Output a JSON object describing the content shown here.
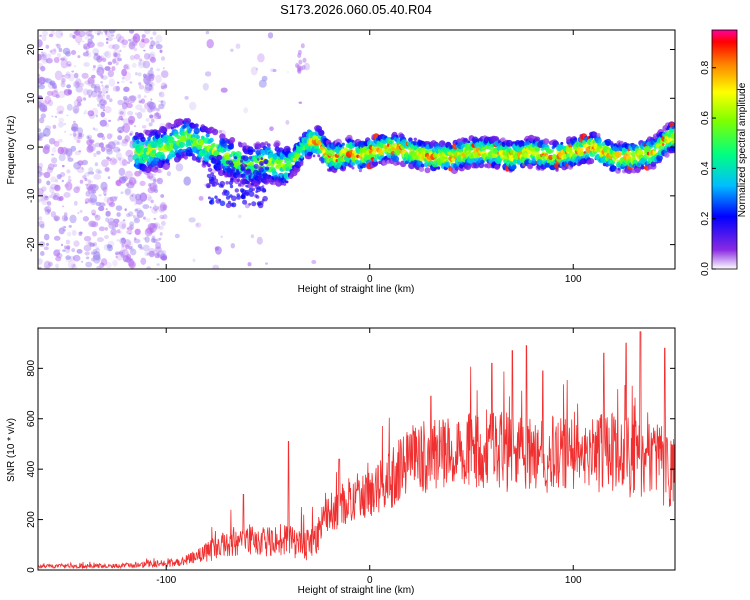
{
  "title": "S173.2026.060.05.40.R04",
  "chart_data": [
    {
      "type": "heatmap",
      "xlabel": "Height of straight line (km)",
      "ylabel": "Frequency (Hz)",
      "xlim": [
        -163,
        150
      ],
      "ylim": [
        -25,
        24
      ],
      "xticks": [
        -100,
        0,
        100
      ],
      "yticks": [
        -20,
        -10,
        0,
        10,
        20
      ],
      "colorbar": {
        "label": "Normalized spectral amplitude",
        "range": [
          0,
          0.95
        ],
        "ticks": [
          0.0,
          0.2,
          0.4,
          0.6,
          0.8
        ],
        "tick_labels": [
          "0.0",
          "0.2",
          "0.4",
          "0.6",
          "0.8"
        ]
      },
      "ridge": {
        "x": [
          -110,
          -100,
          -90,
          -80,
          -70,
          -60,
          -50,
          -40,
          -30,
          -25,
          -20,
          -15,
          -10,
          -5,
          0,
          10,
          20,
          30,
          40,
          50,
          60,
          70,
          80,
          90,
          100,
          110,
          120,
          130,
          140,
          148
        ],
        "y": [
          -1,
          0,
          2,
          0,
          -2,
          -4,
          -3,
          -4,
          1,
          1,
          -2,
          -2,
          -1,
          -2,
          -1,
          0,
          -1,
          -2,
          -2,
          -1,
          -1,
          -2,
          -1,
          -2,
          -1,
          0,
          -2,
          -2,
          -1,
          2
        ]
      }
    },
    {
      "type": "line",
      "xlabel": "Height of straight line (km)",
      "ylabel": "SNR (10 * v/v)",
      "xlim": [
        -163,
        150
      ],
      "ylim": [
        0,
        960
      ],
      "xticks": [
        -100,
        0,
        100
      ],
      "yticks": [
        0,
        200,
        400,
        600,
        800
      ],
      "color": "#f03030",
      "envelope": {
        "x": [
          -163,
          -140,
          -120,
          -100,
          -90,
          -80,
          -70,
          -60,
          -50,
          -40,
          -30,
          -20,
          -10,
          0,
          10,
          20,
          30,
          40,
          50,
          60,
          70,
          80,
          90,
          100,
          110,
          120,
          130,
          140,
          150
        ],
        "mean": [
          15,
          15,
          18,
          25,
          40,
          70,
          110,
          120,
          110,
          120,
          90,
          220,
          280,
          300,
          360,
          430,
          460,
          470,
          480,
          480,
          460,
          440,
          460,
          450,
          460,
          470,
          440,
          420,
          400
        ],
        "spread": [
          8,
          8,
          10,
          15,
          20,
          40,
          60,
          60,
          60,
          70,
          70,
          80,
          90,
          90,
          120,
          140,
          150,
          150,
          150,
          160,
          160,
          160,
          150,
          150,
          160,
          160,
          160,
          160,
          160
        ]
      },
      "peaks": [
        {
          "x": -40,
          "y": 510
        },
        {
          "x": -62,
          "y": 300
        },
        {
          "x": -15,
          "y": 440
        },
        {
          "x": 30,
          "y": 690
        },
        {
          "x": 60,
          "y": 820
        },
        {
          "x": 70,
          "y": 870
        },
        {
          "x": 77,
          "y": 890
        },
        {
          "x": 85,
          "y": 790
        },
        {
          "x": 115,
          "y": 860
        },
        {
          "x": 126,
          "y": 900
        },
        {
          "x": 133,
          "y": 945
        },
        {
          "x": 145,
          "y": 880
        }
      ]
    }
  ]
}
